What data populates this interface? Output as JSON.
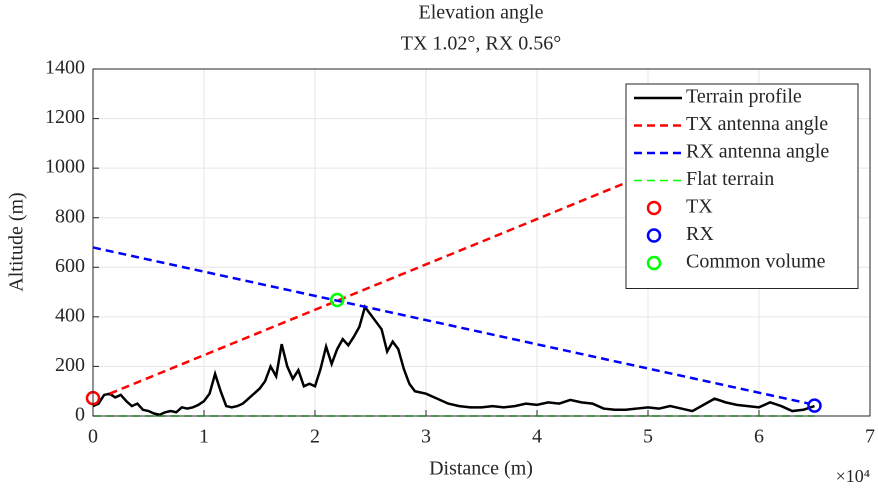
{
  "chart_data": {
    "type": "line",
    "title": [
      "Elevation angle",
      "TX 1.02°, RX 0.56°"
    ],
    "xlabel": "Distance (m)",
    "ylabel": "Altitude (m)",
    "x_exponent": "×10⁴",
    "xlim": [
      0,
      70000
    ],
    "ylim": [
      0,
      1400
    ],
    "xticks": [
      {
        "value": 0,
        "label": "0"
      },
      {
        "value": 10000,
        "label": "1"
      },
      {
        "value": 20000,
        "label": "2"
      },
      {
        "value": 30000,
        "label": "3"
      },
      {
        "value": 40000,
        "label": "4"
      },
      {
        "value": 50000,
        "label": "5"
      },
      {
        "value": 60000,
        "label": "6"
      },
      {
        "value": 70000,
        "label": "7"
      }
    ],
    "yticks": [
      0,
      200,
      400,
      600,
      800,
      1000,
      1200,
      1400
    ],
    "grid": true,
    "legend": "upper right",
    "series": [
      {
        "name": "Terrain profile",
        "color": "#000000",
        "style": "solid",
        "x": [
          0,
          500,
          1000,
          1500,
          2000,
          2500,
          3000,
          3500,
          4000,
          4500,
          5000,
          5500,
          6000,
          6500,
          7000,
          7500,
          8000,
          8500,
          9000,
          9500,
          10000,
          10500,
          11000,
          11500,
          12000,
          12500,
          13000,
          13500,
          14000,
          15000,
          15500,
          16000,
          16500,
          17000,
          17500,
          18000,
          18500,
          19000,
          19500,
          20000,
          20500,
          21000,
          21500,
          22000,
          22500,
          23000,
          23500,
          24000,
          24500,
          25000,
          25500,
          26000,
          26500,
          27000,
          27500,
          28000,
          28500,
          29000,
          30000,
          31000,
          32000,
          33000,
          34000,
          35000,
          36000,
          37000,
          38000,
          39000,
          40000,
          41000,
          42000,
          43000,
          44000,
          45000,
          46000,
          47000,
          48000,
          49000,
          50000,
          51000,
          52000,
          53000,
          54000,
          55000,
          56000,
          57000,
          58000,
          59000,
          60000,
          61000,
          62000,
          63000,
          64000,
          65000
        ],
        "values": [
          40,
          50,
          85,
          90,
          75,
          85,
          60,
          40,
          50,
          25,
          20,
          10,
          5,
          15,
          20,
          15,
          35,
          30,
          35,
          45,
          60,
          90,
          170,
          100,
          40,
          35,
          40,
          50,
          70,
          110,
          140,
          200,
          160,
          290,
          200,
          150,
          185,
          120,
          130,
          120,
          190,
          280,
          210,
          270,
          310,
          285,
          320,
          360,
          440,
          410,
          380,
          350,
          260,
          300,
          270,
          190,
          130,
          100,
          90,
          70,
          50,
          40,
          35,
          35,
          40,
          35,
          40,
          50,
          45,
          55,
          50,
          65,
          55,
          50,
          30,
          25,
          25,
          30,
          35,
          30,
          40,
          30,
          20,
          45,
          70,
          55,
          45,
          40,
          35,
          55,
          40,
          20,
          25,
          40
        ]
      },
      {
        "name": "TX antenna angle",
        "color": "#ff0000",
        "style": "dashed",
        "x": [
          1500,
          65000
        ],
        "values": [
          90,
          1252
        ]
      },
      {
        "name": "RX antenna angle",
        "color": "#0000ff",
        "style": "dashed",
        "x": [
          0,
          64500
        ],
        "values": [
          680,
          50
        ]
      },
      {
        "name": "Flat terrain",
        "color": "#00ff00",
        "style": "dashed-thin",
        "x": [
          0,
          65000
        ],
        "values": [
          0,
          0
        ]
      },
      {
        "name": "TX",
        "color": "#ff0000",
        "style": "marker",
        "x": [
          0
        ],
        "values": [
          72
        ]
      },
      {
        "name": "RX",
        "color": "#0000ff",
        "style": "marker",
        "x": [
          65000
        ],
        "values": [
          42
        ]
      },
      {
        "name": "Common volume",
        "color": "#00ff00",
        "style": "marker",
        "x": [
          22000
        ],
        "values": [
          468
        ]
      }
    ]
  }
}
